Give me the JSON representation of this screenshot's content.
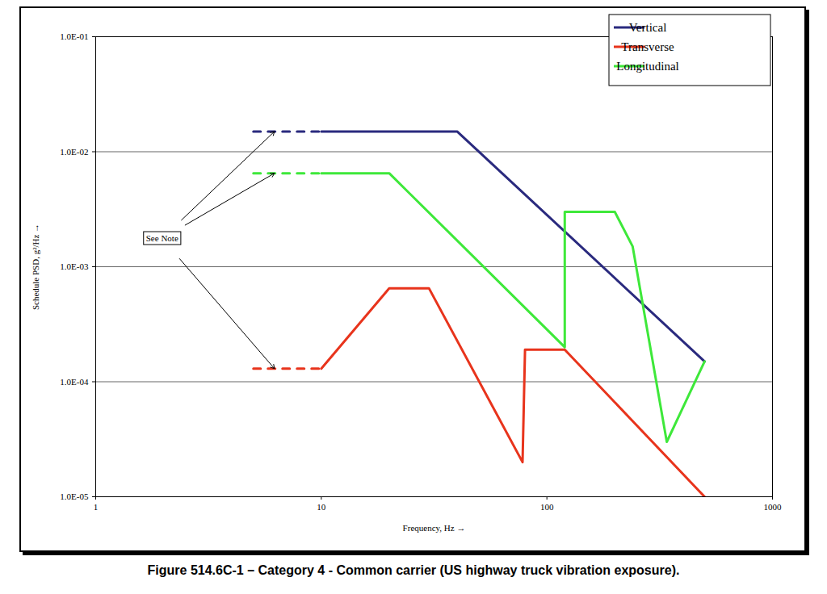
{
  "chart_data": {
    "type": "line",
    "title": "Figure 514.6C-1 – Category 4 - Common carrier (US highway truck vibration exposure).",
    "x_label": "Frequency, Hz",
    "y_label": "Schedule PSD, g²/Hz",
    "log": true,
    "grid": "y",
    "legend": "top-right",
    "xlim": [
      1,
      1000
    ],
    "xticks": [
      1,
      10,
      100,
      1000
    ],
    "ylim": [
      1e-05,
      0.1
    ],
    "yticks": [
      {
        "value": 1e-05,
        "label": "1.0E-05"
      },
      {
        "value": 0.0001,
        "label": "1.0E-04"
      },
      {
        "value": 0.001,
        "label": "1.0E-03"
      },
      {
        "value": 0.01,
        "label": "1.0E-02"
      },
      {
        "value": 0.1,
        "label": "1.0E-01"
      }
    ],
    "series": [
      {
        "name": "Vertical",
        "color": "#2a2a7e",
        "x": [
          10,
          40,
          500
        ],
        "values": [
          0.015,
          0.015,
          0.00015
        ],
        "dashed_x": [
          5,
          10
        ],
        "dashed_values": [
          0.015,
          0.015
        ]
      },
      {
        "name": "Transverse",
        "color": "#e8341c",
        "x": [
          10,
          20,
          30,
          78,
          80,
          120,
          500
        ],
        "values": [
          0.00013,
          0.00065,
          0.00065,
          2e-05,
          0.00019,
          0.00019,
          1e-05
        ],
        "dashed_x": [
          5,
          10
        ],
        "dashed_values": [
          0.00013,
          0.00013
        ]
      },
      {
        "name": "Longitudinal",
        "color": "#3ee83a",
        "x": [
          10,
          20,
          120,
          120,
          200,
          240,
          340,
          500
        ],
        "values": [
          0.0065,
          0.0065,
          0.0002,
          0.003,
          0.003,
          0.0015,
          3e-05,
          0.00015
        ],
        "dashed_x": [
          5,
          10
        ],
        "dashed_values": [
          0.0065,
          0.0065
        ]
      }
    ],
    "annotations": [
      {
        "text": "See Note",
        "x": 1.97,
        "y": 0.00176,
        "targets": [
          [
            6.2,
            0.015
          ],
          [
            6.2,
            0.0065
          ],
          [
            6.2,
            0.00013
          ]
        ]
      }
    ]
  }
}
